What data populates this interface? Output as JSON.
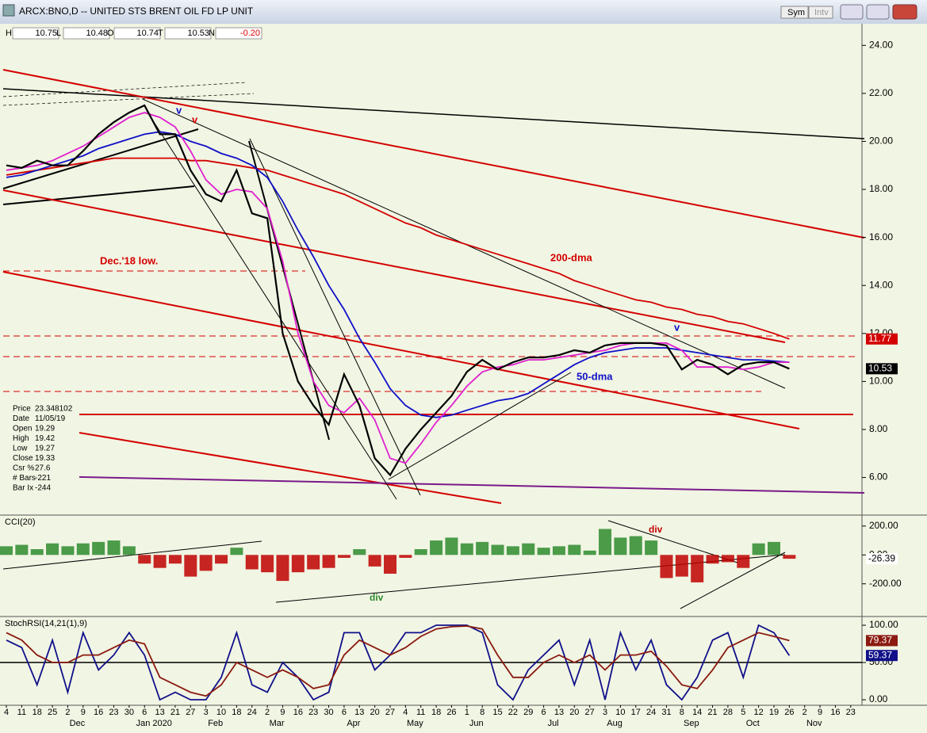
{
  "window": {
    "title": "ARCX:BNO,D -- UNITED STS BRENT OIL FD LP UNIT",
    "buttons": [
      "Sym",
      "Intv"
    ]
  },
  "quote_bar": [
    [
      "H",
      "10.75"
    ],
    [
      "L",
      "10.48"
    ],
    [
      "O",
      "10.74"
    ],
    [
      "T",
      "10.53"
    ],
    [
      "N",
      "-0.20"
    ]
  ],
  "info_panel": [
    [
      "Price",
      "23.348102"
    ],
    [
      "Date",
      "11/05/19"
    ],
    [
      "Open",
      "19.29"
    ],
    [
      "High",
      "19.42"
    ],
    [
      "Low",
      "19.27"
    ],
    [
      "Close",
      "19.33"
    ],
    [
      "Csr %",
      "27.6"
    ],
    [
      "# Bars",
      "-221"
    ],
    [
      "Bar Ix",
      "-244"
    ]
  ],
  "x_axis": {
    "days": [
      "4",
      "11",
      "18",
      "25",
      "2",
      "9",
      "16",
      "23",
      "30",
      "6",
      "13",
      "21",
      "27",
      "3",
      "10",
      "18",
      "24",
      "2",
      "9",
      "16",
      "23",
      "30",
      "6",
      "13",
      "20",
      "27",
      "4",
      "11",
      "18",
      "26",
      "1",
      "8",
      "15",
      "22",
      "29",
      "6",
      "13",
      "20",
      "27",
      "3",
      "10",
      "17",
      "24",
      "31",
      "8",
      "14",
      "21",
      "28",
      "5",
      "12",
      "19",
      "26",
      "2",
      "9",
      "16",
      "23"
    ],
    "months": [
      "Dec",
      "Jan 2020",
      "Feb",
      "Mar",
      "Apr",
      "May",
      "Jun",
      "Jul",
      "Aug",
      "Sep",
      "Oct",
      "Nov"
    ]
  },
  "chart_data": [
    {
      "type": "line",
      "annotations": [
        "Dec.'18 low.",
        "v",
        "v",
        "v"
      ],
      "ylim": [
        4.5,
        24.9
      ],
      "yticks": [
        {
          "value": 6,
          "label": "6.00"
        },
        {
          "value": 8,
          "label": "8.00"
        },
        {
          "value": 10,
          "label": "10.00"
        },
        {
          "value": 12,
          "label": "12.00"
        },
        {
          "value": 14,
          "label": "14.00"
        },
        {
          "value": 16,
          "label": "16.00"
        },
        {
          "value": 18,
          "label": "18.00"
        },
        {
          "value": 20,
          "label": "20.00"
        },
        {
          "value": 22,
          "label": "22.00"
        },
        {
          "value": 24,
          "label": "24.00"
        }
      ],
      "series": [
        {
          "name": "200-dma",
          "color": "#d40000",
          "values": [
            18.6,
            18.7,
            18.8,
            18.9,
            19.0,
            19.1,
            19.2,
            19.3,
            19.3,
            19.3,
            19.3,
            19.3,
            19.2,
            19.2,
            19.1,
            19.0,
            18.9,
            18.8,
            18.6,
            18.4,
            18.2,
            18.0,
            17.8,
            17.5,
            17.2,
            16.9,
            16.6,
            16.4,
            16.1,
            15.9,
            15.7,
            15.5,
            15.3,
            15.1,
            14.9,
            14.7,
            14.5,
            14.2,
            14.0,
            13.8,
            13.6,
            13.4,
            13.3,
            13.1,
            13.0,
            12.8,
            12.7,
            12.5,
            12.4,
            12.2,
            12.0,
            11.77,
            null,
            null,
            null,
            null
          ]
        },
        {
          "name": "50-dma",
          "color": "#1010c8",
          "values": [
            18.5,
            18.6,
            18.8,
            19.0,
            19.2,
            19.4,
            19.7,
            19.9,
            20.1,
            20.3,
            20.4,
            20.3,
            20.0,
            19.8,
            19.5,
            19.3,
            19.0,
            18.5,
            17.5,
            16.3,
            15.2,
            14.0,
            13.0,
            11.8,
            10.8,
            9.7,
            9.0,
            8.6,
            8.5,
            8.6,
            8.8,
            9.0,
            9.2,
            9.3,
            9.5,
            9.9,
            10.3,
            10.7,
            11.0,
            11.2,
            11.3,
            11.4,
            11.4,
            11.4,
            11.3,
            11.2,
            11.1,
            11.0,
            10.9,
            10.9,
            10.85,
            10.8,
            null,
            null,
            null,
            null
          ]
        },
        {
          "color": "#e020d0",
          "values": [
            18.8,
            18.9,
            19.0,
            19.2,
            19.5,
            19.8,
            20.2,
            20.6,
            21.0,
            21.2,
            21.0,
            20.6,
            19.6,
            18.4,
            17.8,
            18.0,
            17.9,
            17.2,
            15.0,
            12.0,
            10.0,
            9.0,
            8.7,
            9.3,
            8.4,
            6.8,
            6.6,
            7.4,
            8.3,
            9.0,
            9.8,
            10.4,
            10.6,
            10.7,
            10.9,
            10.9,
            11.0,
            11.1,
            11.2,
            11.3,
            11.5,
            11.6,
            11.6,
            11.6,
            11.3,
            10.6,
            10.6,
            10.6,
            10.5,
            10.6,
            10.8,
            10.8,
            null,
            null,
            null,
            null
          ]
        },
        {
          "color": "#000000",
          "values": [
            19.0,
            18.9,
            19.2,
            19.0,
            19.0,
            19.6,
            20.3,
            20.8,
            21.2,
            21.5,
            20.3,
            20.3,
            18.8,
            17.8,
            17.5,
            18.8,
            17.0,
            16.8,
            12.0,
            10.0,
            9.0,
            8.2,
            10.3,
            9.0,
            6.8,
            6.1,
            7.2,
            8.0,
            8.7,
            9.4,
            10.4,
            10.9,
            10.5,
            10.8,
            11.0,
            11.0,
            11.1,
            11.3,
            11.2,
            11.5,
            11.6,
            11.6,
            11.6,
            11.5,
            10.5,
            10.9,
            10.7,
            10.3,
            10.7,
            10.8,
            10.8,
            10.53,
            null,
            null,
            null,
            null
          ]
        }
      ]
    },
    {
      "type": "bar",
      "title": "CCI(20)",
      "annotations": [
        "div",
        "div"
      ],
      "ylim": [
        -410,
        265
      ],
      "yticks": [
        {
          "value": 200,
          "label": "200.00"
        },
        {
          "value": 0,
          "label": "0.00"
        },
        {
          "value": -200,
          "label": "-200.00"
        }
      ],
      "color_up": "#2e8b2e",
      "color_down": "#c00000",
      "values": [
        60,
        70,
        40,
        80,
        60,
        80,
        90,
        100,
        60,
        -60,
        -90,
        -60,
        -150,
        -110,
        -60,
        50,
        -100,
        -120,
        -180,
        -120,
        -100,
        -90,
        -20,
        40,
        -80,
        -130,
        -20,
        40,
        100,
        120,
        80,
        90,
        70,
        60,
        80,
        50,
        60,
        70,
        30,
        180,
        120,
        130,
        100,
        -160,
        -150,
        -190,
        -60,
        -50,
        -90,
        80,
        90,
        -26.39,
        null,
        null,
        null,
        null
      ]
    },
    {
      "type": "line",
      "title": "StochRSI(14,21(1),9)",
      "ylim": [
        -7.4,
        109.6
      ],
      "yticks": [
        {
          "value": 0,
          "label": "0.00"
        },
        {
          "value": 50,
          "label": "50.00"
        },
        {
          "value": 100,
          "label": "100.00"
        }
      ],
      "series": [
        {
          "color": "#10108a",
          "values": [
            80,
            70,
            20,
            80,
            10,
            90,
            40,
            60,
            90,
            60,
            0,
            10,
            0,
            0,
            30,
            90,
            20,
            10,
            50,
            30,
            0,
            10,
            90,
            90,
            40,
            60,
            90,
            90,
            100,
            100,
            100,
            90,
            20,
            0,
            40,
            60,
            80,
            20,
            80,
            0,
            90,
            40,
            80,
            20,
            0,
            30,
            80,
            90,
            30,
            100,
            90,
            59.37,
            null,
            null,
            null,
            null
          ]
        },
        {
          "color": "#8b1a10",
          "values": [
            90,
            80,
            60,
            50,
            50,
            60,
            60,
            70,
            80,
            75,
            30,
            20,
            10,
            5,
            20,
            50,
            40,
            30,
            40,
            30,
            15,
            20,
            60,
            80,
            70,
            60,
            70,
            85,
            95,
            98,
            99,
            95,
            60,
            30,
            30,
            50,
            60,
            50,
            60,
            40,
            60,
            60,
            65,
            45,
            20,
            15,
            40,
            70,
            80,
            90,
            85,
            79.37,
            null,
            null,
            null,
            null
          ]
        }
      ]
    }
  ]
}
